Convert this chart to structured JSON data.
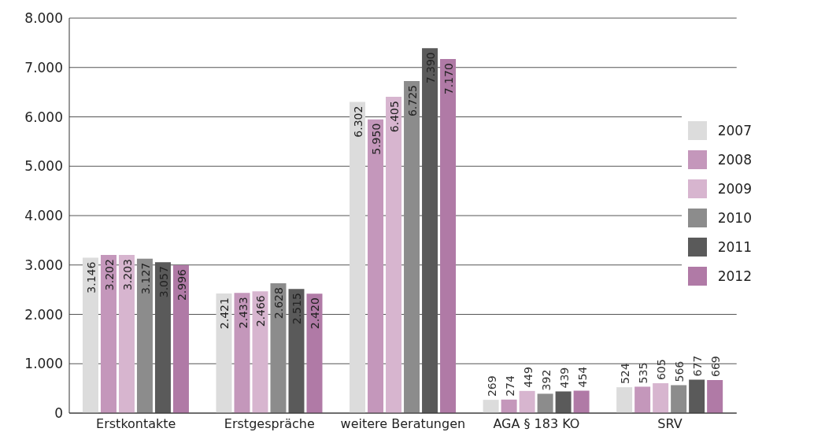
{
  "chart_data": {
    "type": "bar",
    "categories": [
      "Erstkontakte",
      "Erstgespräche",
      "weitere Beratungen",
      "AGA § 183 KO",
      "SRV"
    ],
    "series": [
      {
        "name": "2007",
        "color": "#dcdcdc",
        "values": [
          3146,
          2421,
          6302,
          269,
          524
        ],
        "value_labels": [
          "3.146",
          "2.421",
          "6.302",
          "269",
          "524"
        ]
      },
      {
        "name": "2008",
        "color": "#c497bb",
        "values": [
          3202,
          2433,
          5950,
          274,
          535
        ],
        "value_labels": [
          "3.202",
          "2.433",
          "5.950",
          "274",
          "535"
        ]
      },
      {
        "name": "2009",
        "color": "#d7b5cf",
        "values": [
          3203,
          2466,
          6405,
          449,
          605
        ],
        "value_labels": [
          "3.203",
          "2.466",
          "6.405",
          "449",
          "605"
        ]
      },
      {
        "name": "2010",
        "color": "#8c8c8c",
        "values": [
          3127,
          2628,
          6725,
          392,
          566
        ],
        "value_labels": [
          "3.127",
          "2.628",
          "6.725",
          "392",
          "566"
        ]
      },
      {
        "name": "2011",
        "color": "#5a5a5a",
        "values": [
          3057,
          2515,
          7390,
          439,
          677
        ],
        "value_labels": [
          "3.057",
          "2.515",
          "7.390",
          "439",
          "677"
        ]
      },
      {
        "name": "2012",
        "color": "#b07aa6",
        "values": [
          2996,
          2420,
          7170,
          454,
          669
        ],
        "value_labels": [
          "2.996",
          "2.420",
          "7.170",
          "454",
          "669"
        ]
      }
    ],
    "ylim": [
      0,
      8000
    ],
    "yticks": [
      {
        "value": 0,
        "label": "0"
      },
      {
        "value": 1000,
        "label": "1.000"
      },
      {
        "value": 2000,
        "label": "2.000"
      },
      {
        "value": 3000,
        "label": "3.000"
      },
      {
        "value": 4000,
        "label": "4.000"
      },
      {
        "value": 5000,
        "label": "5.000"
      },
      {
        "value": 6000,
        "label": "6.000"
      },
      {
        "value": 7000,
        "label": "7.000"
      },
      {
        "value": 8000,
        "label": "8.000"
      }
    ],
    "grid": "y",
    "legend": "top right"
  }
}
